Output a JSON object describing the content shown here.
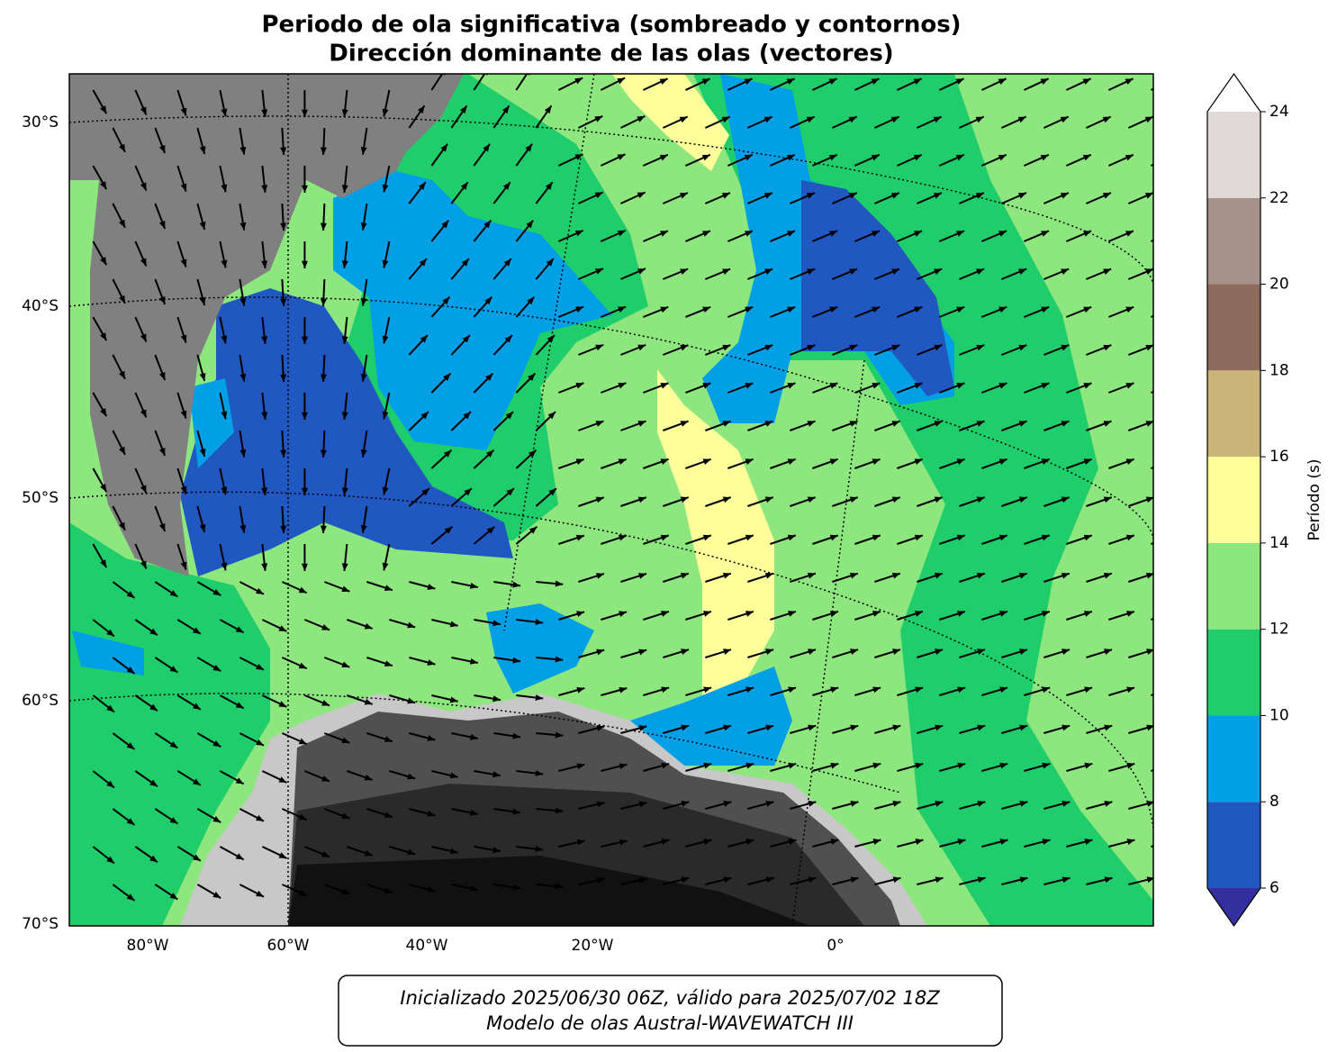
{
  "map": {
    "title": [
      "Periodo de ola significativa (sombreado y contornos)",
      "Dirección dominante de las olas (vectores)"
    ],
    "lat_labels": [
      "30°S",
      "40°S",
      "50°S",
      "60°S",
      "70°S"
    ],
    "lon_labels": [
      "80°W",
      "60°W",
      "40°W",
      "20°W",
      "0°"
    ]
  },
  "colorbar": {
    "label": "Período (s)",
    "ticks": [
      6,
      8,
      10,
      12,
      14,
      16,
      18,
      20,
      22,
      24
    ],
    "colors": [
      "#2157c1",
      "#009fe6",
      "#1fce6a",
      "#8ee67f",
      "#fefe9a",
      "#c9b47a",
      "#8c6b5c",
      "#a6908a",
      "#e0d9d7"
    ],
    "under_color": "#33309e",
    "over_color": "#ffffff"
  },
  "footer": [
    "Inicializado 2025/06/30 06Z, válido para 2025/07/02 18Z",
    "Modelo de olas Austral-WAVEWATCH III"
  ]
}
